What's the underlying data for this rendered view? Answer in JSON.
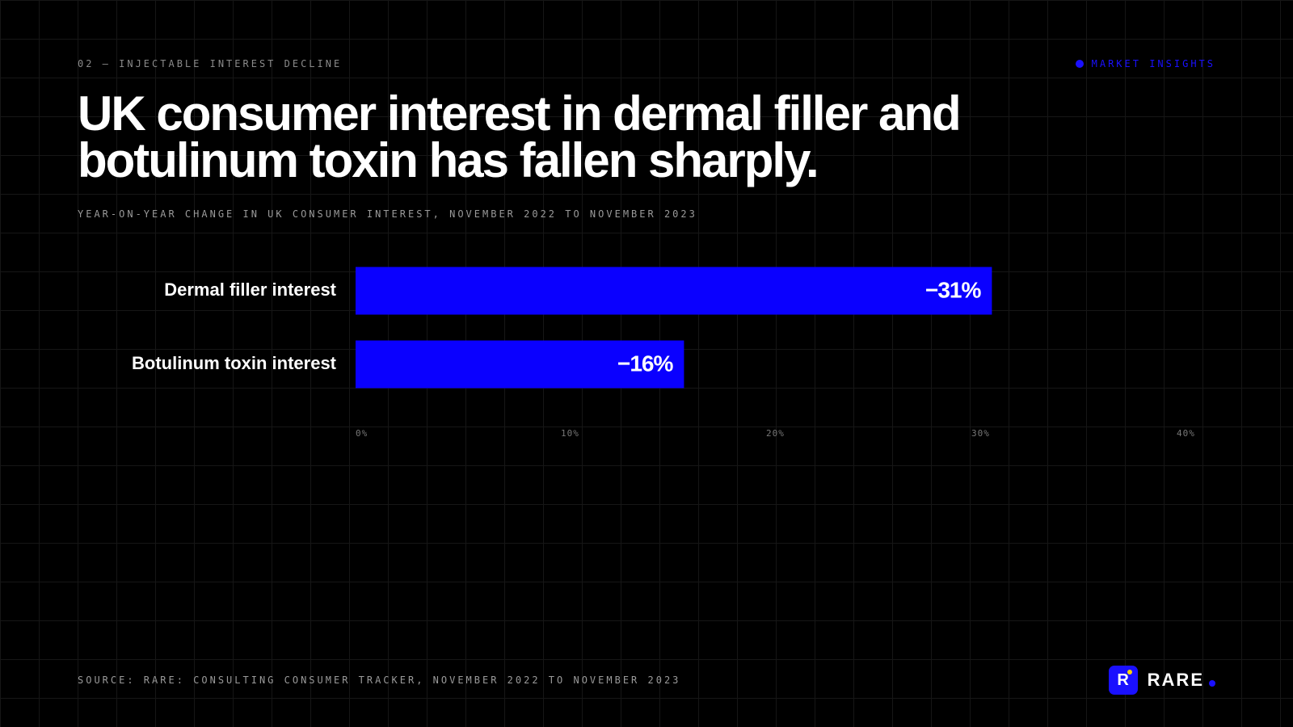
{
  "header": {
    "kicker": "02 — INJECTABLE INTEREST DECLINE",
    "badge": "MARKET INSIGHTS"
  },
  "chart_data": {
    "type": "bar",
    "orientation": "horizontal",
    "title": "UK consumer interest in dermal filler and botulinum toxin has fallen sharply.",
    "subtitle": "YEAR-ON-YEAR CHANGE IN UK CONSUMER INTEREST, NOVEMBER 2022 TO NOVEMBER 2023",
    "categories": [
      "Dermal filler interest",
      "Botulinum toxin interest"
    ],
    "values": [
      -31,
      -16
    ],
    "value_labels": [
      "−31%",
      "−16%"
    ],
    "color": "#0a00ff",
    "xlim": [
      0,
      40
    ],
    "xticks": [
      {
        "value": 0,
        "label": "0%"
      },
      {
        "value": 10,
        "label": "10%"
      },
      {
        "value": 20,
        "label": "20%"
      },
      {
        "value": 30,
        "label": "30%"
      },
      {
        "value": 40,
        "label": "40%"
      }
    ]
  },
  "footer": {
    "source": "SOURCE: RARE: CONSULTING CONSUMER TRACKER, NOVEMBER 2022 TO NOVEMBER 2023",
    "logo_mark": "R",
    "brand": "RARE"
  }
}
